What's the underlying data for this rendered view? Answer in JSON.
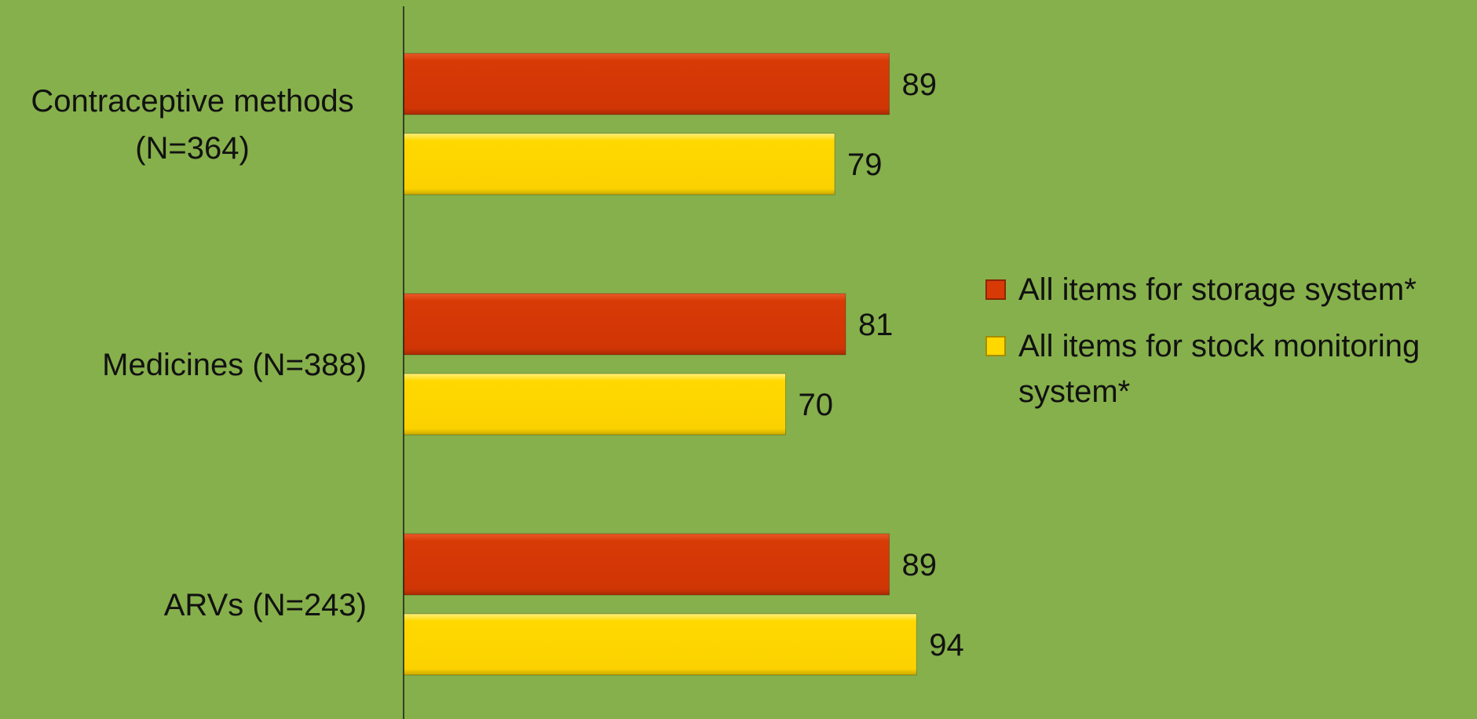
{
  "chart_data": {
    "type": "bar",
    "orientation": "horizontal",
    "categories": [
      [
        "Contraceptive methods",
        "(N=364)"
      ],
      [
        "Medicines (N=388)"
      ],
      [
        "ARVs (N=243)"
      ]
    ],
    "series": [
      {
        "name": "All items for storage system*",
        "values": [
          89,
          81,
          89
        ],
        "color": "#d83a06"
      },
      {
        "name": "All items for stock monitoring system*",
        "values": [
          79,
          70,
          94
        ],
        "color": "#ffd800"
      }
    ],
    "xlim": [
      0,
      100
    ],
    "grid": false,
    "legend_position": "right",
    "title": "",
    "xlabel": "",
    "ylabel": "",
    "background_color": "#86b04b"
  }
}
